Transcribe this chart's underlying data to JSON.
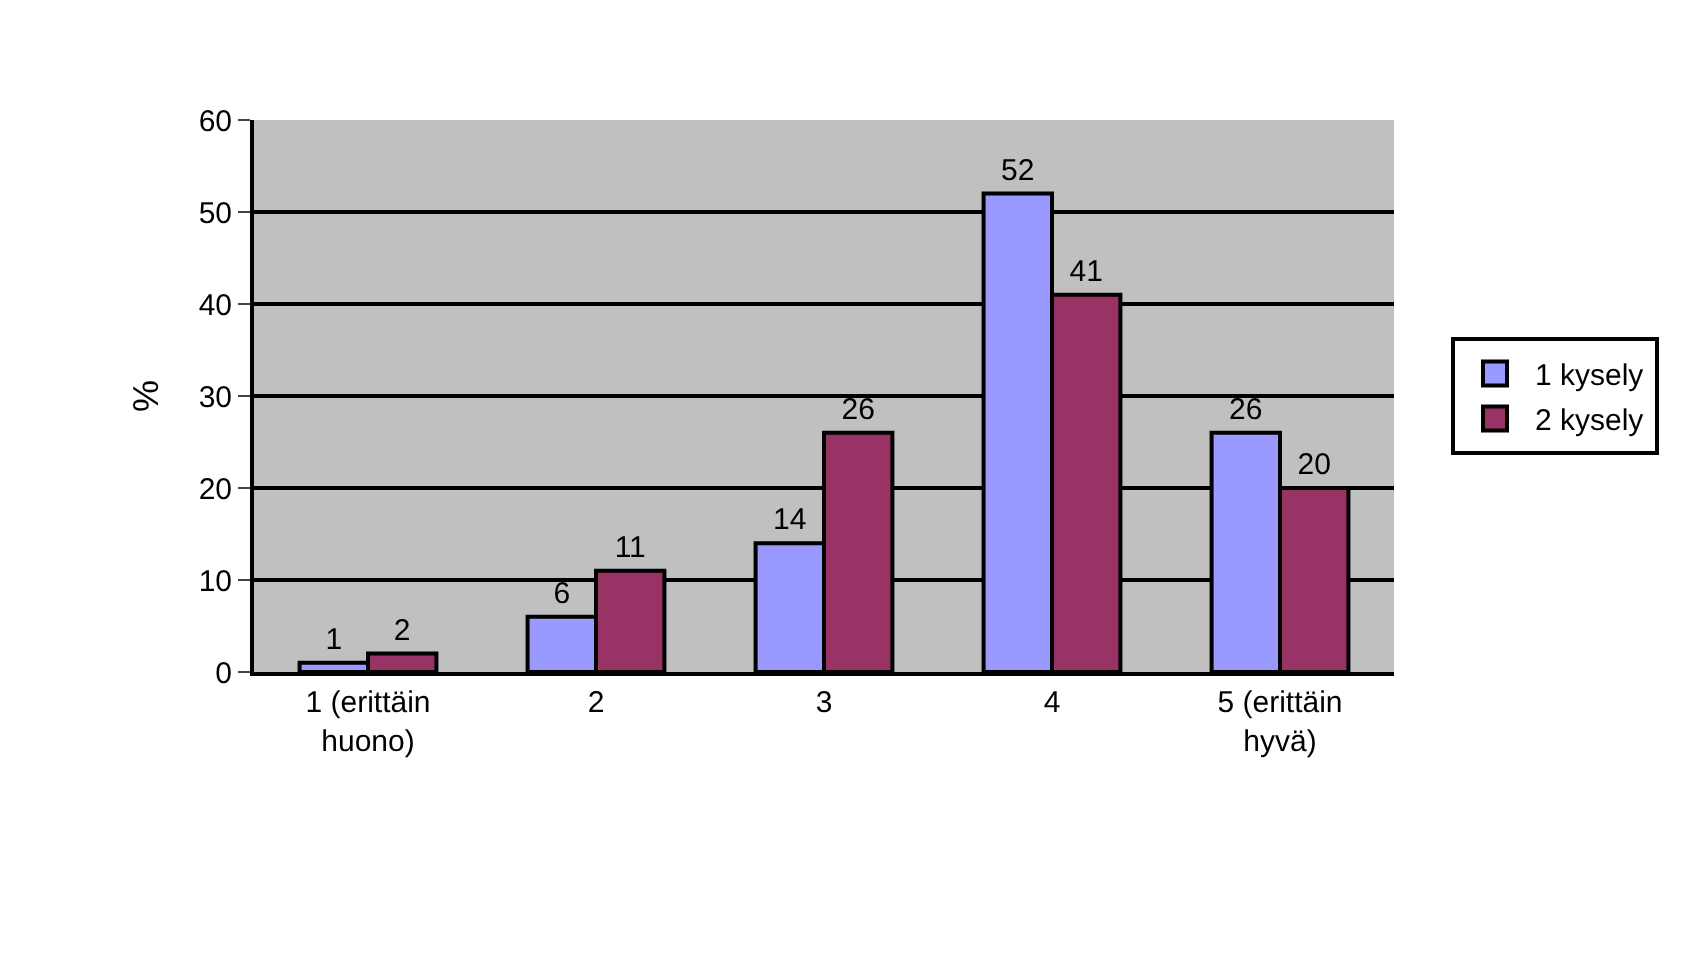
{
  "chart_data": {
    "type": "bar",
    "ylabel": "%",
    "categories": [
      "1 (erittäin huono)",
      "2",
      "3",
      "4",
      "5 (erittäin hyvä)"
    ],
    "series": [
      {
        "name": "1 kysely",
        "color": "#9999ff",
        "values": [
          1,
          6,
          14,
          52,
          26
        ]
      },
      {
        "name": "2 kysely",
        "color": "#993366",
        "values": [
          2,
          11,
          26,
          41,
          20
        ]
      }
    ],
    "ylim": [
      0,
      60
    ],
    "yticks": [
      0,
      10,
      20,
      30,
      40,
      50,
      60
    ],
    "grid": "y",
    "legend": "right",
    "data_labels": true
  }
}
